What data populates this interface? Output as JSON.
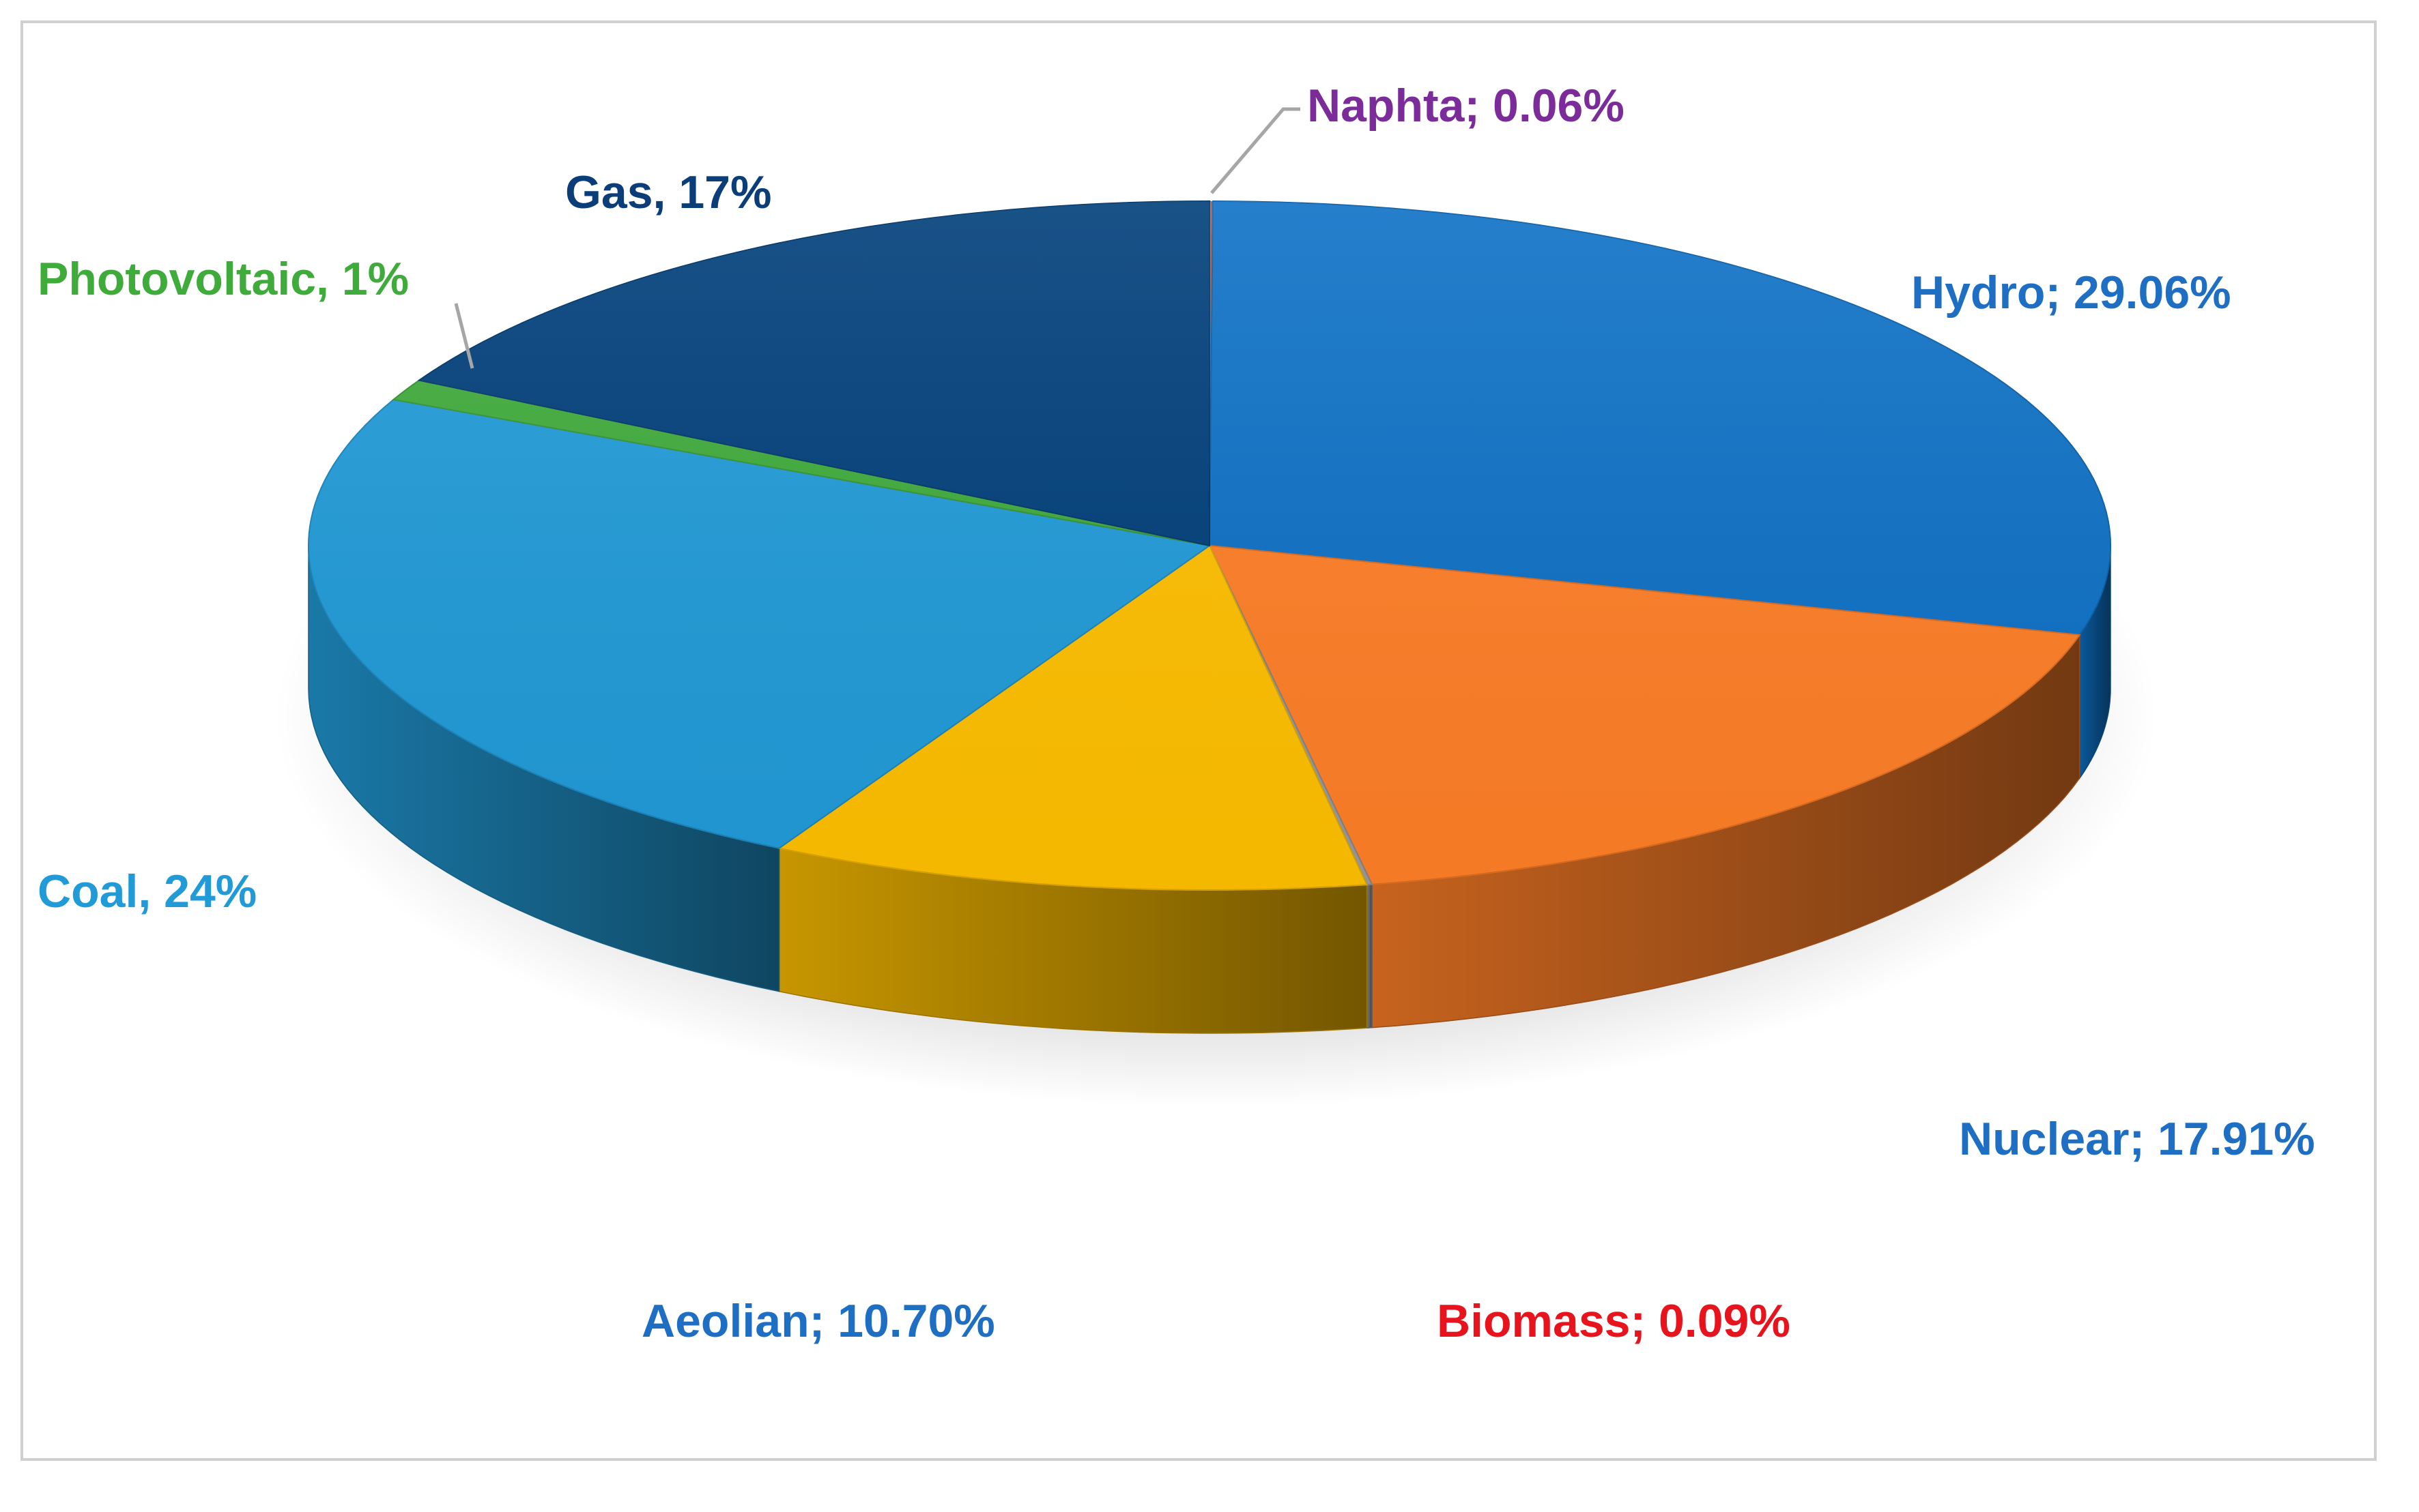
{
  "chart_data": {
    "type": "pie",
    "style": "3d",
    "title": "",
    "slices": [
      {
        "key": "naphta",
        "name": "Naphta",
        "value": 0.06,
        "label": "Naphta; 0.06%",
        "color": "#d8603a",
        "label_color": "#7b2c9a"
      },
      {
        "key": "hydro",
        "name": "Hydro",
        "value": 29.06,
        "label": "Hydro; 29.06%",
        "color": "#0e71c6",
        "label_color": "#1e6fc4"
      },
      {
        "key": "nuclear",
        "name": "Nuclear",
        "value": 17.91,
        "label": "Nuclear; 17.91%",
        "color": "#ff7f27",
        "label_color": "#1e6fc4"
      },
      {
        "key": "biomass",
        "name": "Biomass",
        "value": 0.09,
        "label": "Biomass; 0.09%",
        "color": "#9a9a9a",
        "label_color": "#e8141d"
      },
      {
        "key": "aeolian",
        "name": "Aeolian",
        "value": 10.7,
        "label": "Aeolian; 10.70%",
        "color": "#ffc000",
        "label_color": "#1e6fc4"
      },
      {
        "key": "coal",
        "name": "Coal",
        "value": 24,
        "label": "Coal, 24%",
        "color": "#219bd8",
        "label_color": "#219bd8"
      },
      {
        "key": "photovoltaic",
        "name": "Photovoltaic",
        "value": 1,
        "label": "Photovoltaic, 1%",
        "color": "#3fab3b",
        "label_color": "#3fab3b"
      },
      {
        "key": "gas",
        "name": "Gas",
        "value": 17,
        "label": "Gas, 17%",
        "color": "#003f7a",
        "label_color": "#0b3e78"
      }
    ],
    "legend": "none",
    "leader_line_color": "#a6a6a6"
  }
}
